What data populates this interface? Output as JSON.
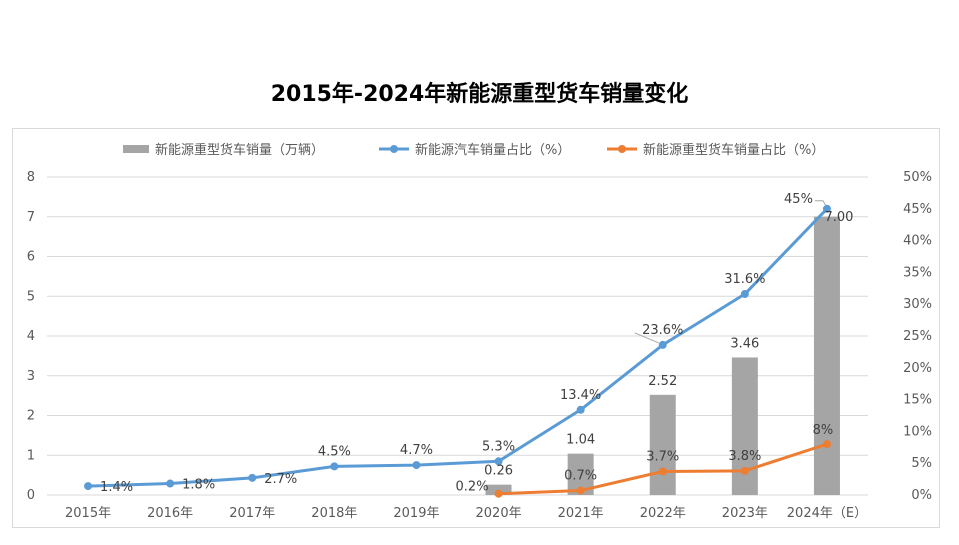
{
  "title": "2015年-2024年新能源重型货车销量变化",
  "chart_data": {
    "type": "bar+line",
    "title": "2015年-2024年新能源重型货车销量变化",
    "categories": [
      "2015年",
      "2016年",
      "2017年",
      "2018年",
      "2019年",
      "2020年",
      "2021年",
      "2022年",
      "2023年",
      "2024年（E）"
    ],
    "y_left": {
      "min": 0,
      "max": 8,
      "ticks": [
        "0",
        "1",
        "2",
        "3",
        "4",
        "5",
        "6",
        "7",
        "8"
      ]
    },
    "y_right": {
      "min": 0,
      "max": 50,
      "ticks": [
        "0%",
        "5%",
        "10%",
        "15%",
        "20%",
        "25%",
        "30%",
        "35%",
        "40%",
        "45%",
        "50%"
      ]
    },
    "grid": true,
    "legend_position": "top",
    "series": [
      {
        "name": "新能源重型货车销量（万辆）",
        "type": "bar",
        "axis": "left",
        "color": "#a5a5a5",
        "values": [
          null,
          null,
          null,
          null,
          null,
          0.26,
          1.04,
          2.52,
          3.46,
          7.0
        ],
        "labels": [
          "",
          "",
          "",
          "",
          "",
          "0.26",
          "1.04",
          "2.52",
          "3.46",
          "7.00"
        ]
      },
      {
        "name": "新能源汽车销量占比（%）",
        "type": "line",
        "axis": "right",
        "color": "#5b9bd5",
        "values": [
          1.4,
          1.8,
          2.7,
          4.5,
          4.7,
          5.3,
          13.4,
          23.6,
          31.6,
          45
        ],
        "labels": [
          "1.4%",
          "1.8%",
          "2.7%",
          "4.5%",
          "4.7%",
          "5.3%",
          "13.4%",
          "23.6%",
          "31.6%",
          "45%"
        ]
      },
      {
        "name": "新能源重型货车销量占比（%）",
        "type": "line",
        "axis": "right",
        "color": "#ed7d31",
        "values": [
          null,
          null,
          null,
          null,
          null,
          0.2,
          0.7,
          3.7,
          3.8,
          8
        ],
        "labels": [
          "",
          "",
          "",
          "",
          "",
          "0.2%",
          "0.7%",
          "3.7%",
          "3.8%",
          "8%"
        ]
      }
    ]
  }
}
